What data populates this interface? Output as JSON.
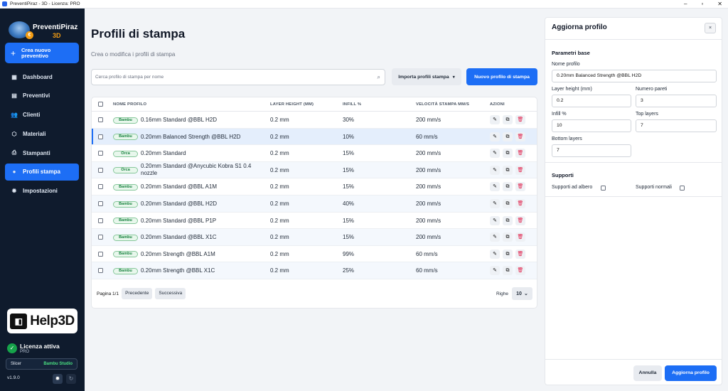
{
  "window": {
    "title": "PreventiPiraz - 3D - Licenza: PRO",
    "min": "–",
    "max": "▫",
    "close": "✕"
  },
  "sidebar": {
    "logo_text": "PreventiPiraz",
    "logo_sub": "3D",
    "new_quote": "Crea nuovo preventivo",
    "items": [
      {
        "label": "Dashboard",
        "icon": "dashboard-icon",
        "glyph": "▦"
      },
      {
        "label": "Preventivi",
        "icon": "document-icon",
        "glyph": "▤"
      },
      {
        "label": "Clienti",
        "icon": "users-icon",
        "glyph": "👥"
      },
      {
        "label": "Materiali",
        "icon": "cube-icon",
        "glyph": "⬡"
      },
      {
        "label": "Stampanti",
        "icon": "printer-icon",
        "glyph": "⎙"
      },
      {
        "label": "Profili stampa",
        "icon": "user-icon",
        "glyph": "●",
        "active": true
      },
      {
        "label": "Impostazioni",
        "icon": "gear-icon",
        "glyph": "✹"
      }
    ],
    "help_logo": "Help3D",
    "license_title": "Licenza attiva",
    "license_plan": "PRO",
    "slicer_label": "Slicer",
    "slicer_value": "Bambu Studio",
    "version": "v1.9.0"
  },
  "main": {
    "title": "Profili di stampa",
    "subtitle": "Crea o modifica i profili di stampa",
    "search_placeholder": "Cerca profilo di stampa per nome",
    "import_btn": "Importa profili stampa",
    "new_btn": "Nuovo profilo di stampa",
    "columns": [
      "NOME PROFILO",
      "LAYER HEIGHT (MM)",
      "INFILL %",
      "VELOCITÀ STAMPA MM/S",
      "AZIONI"
    ],
    "rows": [
      {
        "tag": "Bambu",
        "name": "0.16mm Standard @BBL H2D",
        "layer": "0.2 mm",
        "infill": "30%",
        "speed": "200 mm/s"
      },
      {
        "tag": "Bambu",
        "name": "0.20mm Balanced Strength @BBL H2D",
        "layer": "0.2 mm",
        "infill": "10%",
        "speed": "60 mm/s",
        "selected": true
      },
      {
        "tag": "Orca",
        "name": "0.20mm Standard",
        "layer": "0.2 mm",
        "infill": "15%",
        "speed": "200 mm/s"
      },
      {
        "tag": "Orca",
        "name": "0.20mm Standard @Anycubic Kobra S1 0.4 nozzle",
        "layer": "0.2 mm",
        "infill": "15%",
        "speed": "200 mm/s"
      },
      {
        "tag": "Bambu",
        "name": "0.20mm Standard @BBL A1M",
        "layer": "0.2 mm",
        "infill": "15%",
        "speed": "200 mm/s"
      },
      {
        "tag": "Bambu",
        "name": "0.20mm Standard @BBL H2D",
        "layer": "0.2 mm",
        "infill": "40%",
        "speed": "200 mm/s"
      },
      {
        "tag": "Bambu",
        "name": "0.20mm Standard @BBL P1P",
        "layer": "0.2 mm",
        "infill": "15%",
        "speed": "200 mm/s"
      },
      {
        "tag": "Bambu",
        "name": "0.20mm Standard @BBL X1C",
        "layer": "0.2 mm",
        "infill": "15%",
        "speed": "200 mm/s"
      },
      {
        "tag": "Bambu",
        "name": "0.20mm Strength @BBL A1M",
        "layer": "0.2 mm",
        "infill": "99%",
        "speed": "60 mm/s"
      },
      {
        "tag": "Bambu",
        "name": "0.20mm Strength @BBL X1C",
        "layer": "0.2 mm",
        "infill": "25%",
        "speed": "60 mm/s"
      }
    ],
    "page_label": "Pagina 1/1",
    "prev_btn": "Precedente",
    "next_btn": "Successiva",
    "rows_label": "Righe",
    "rows_value": "10"
  },
  "panel": {
    "title": "Aggiorna profilo",
    "close": "×",
    "section_base": "Parametri base",
    "name_label": "Nome profilo",
    "name_value": "0.20mm Balanced Strength @BBL H2D",
    "layer_label": "Layer height (mm)",
    "layer_value": "0.2",
    "walls_label": "Numero pareti",
    "walls_value": "3",
    "infill_label": "Infill %",
    "infill_value": "10",
    "top_label": "Top layers",
    "top_value": "7",
    "bottom_label": "Bottom layers",
    "bottom_value": "7",
    "section_supports": "Supporti",
    "tree_label": "Supporti ad albero",
    "normal_label": "Supporti normali",
    "cancel_btn": "Annulla",
    "save_btn": "Aggiorna profilo"
  },
  "colors": {
    "accent": "#1d6ef5",
    "sidebar": "#0f1b2d",
    "badge_green": "#15803d",
    "danger": "#e11d48"
  }
}
